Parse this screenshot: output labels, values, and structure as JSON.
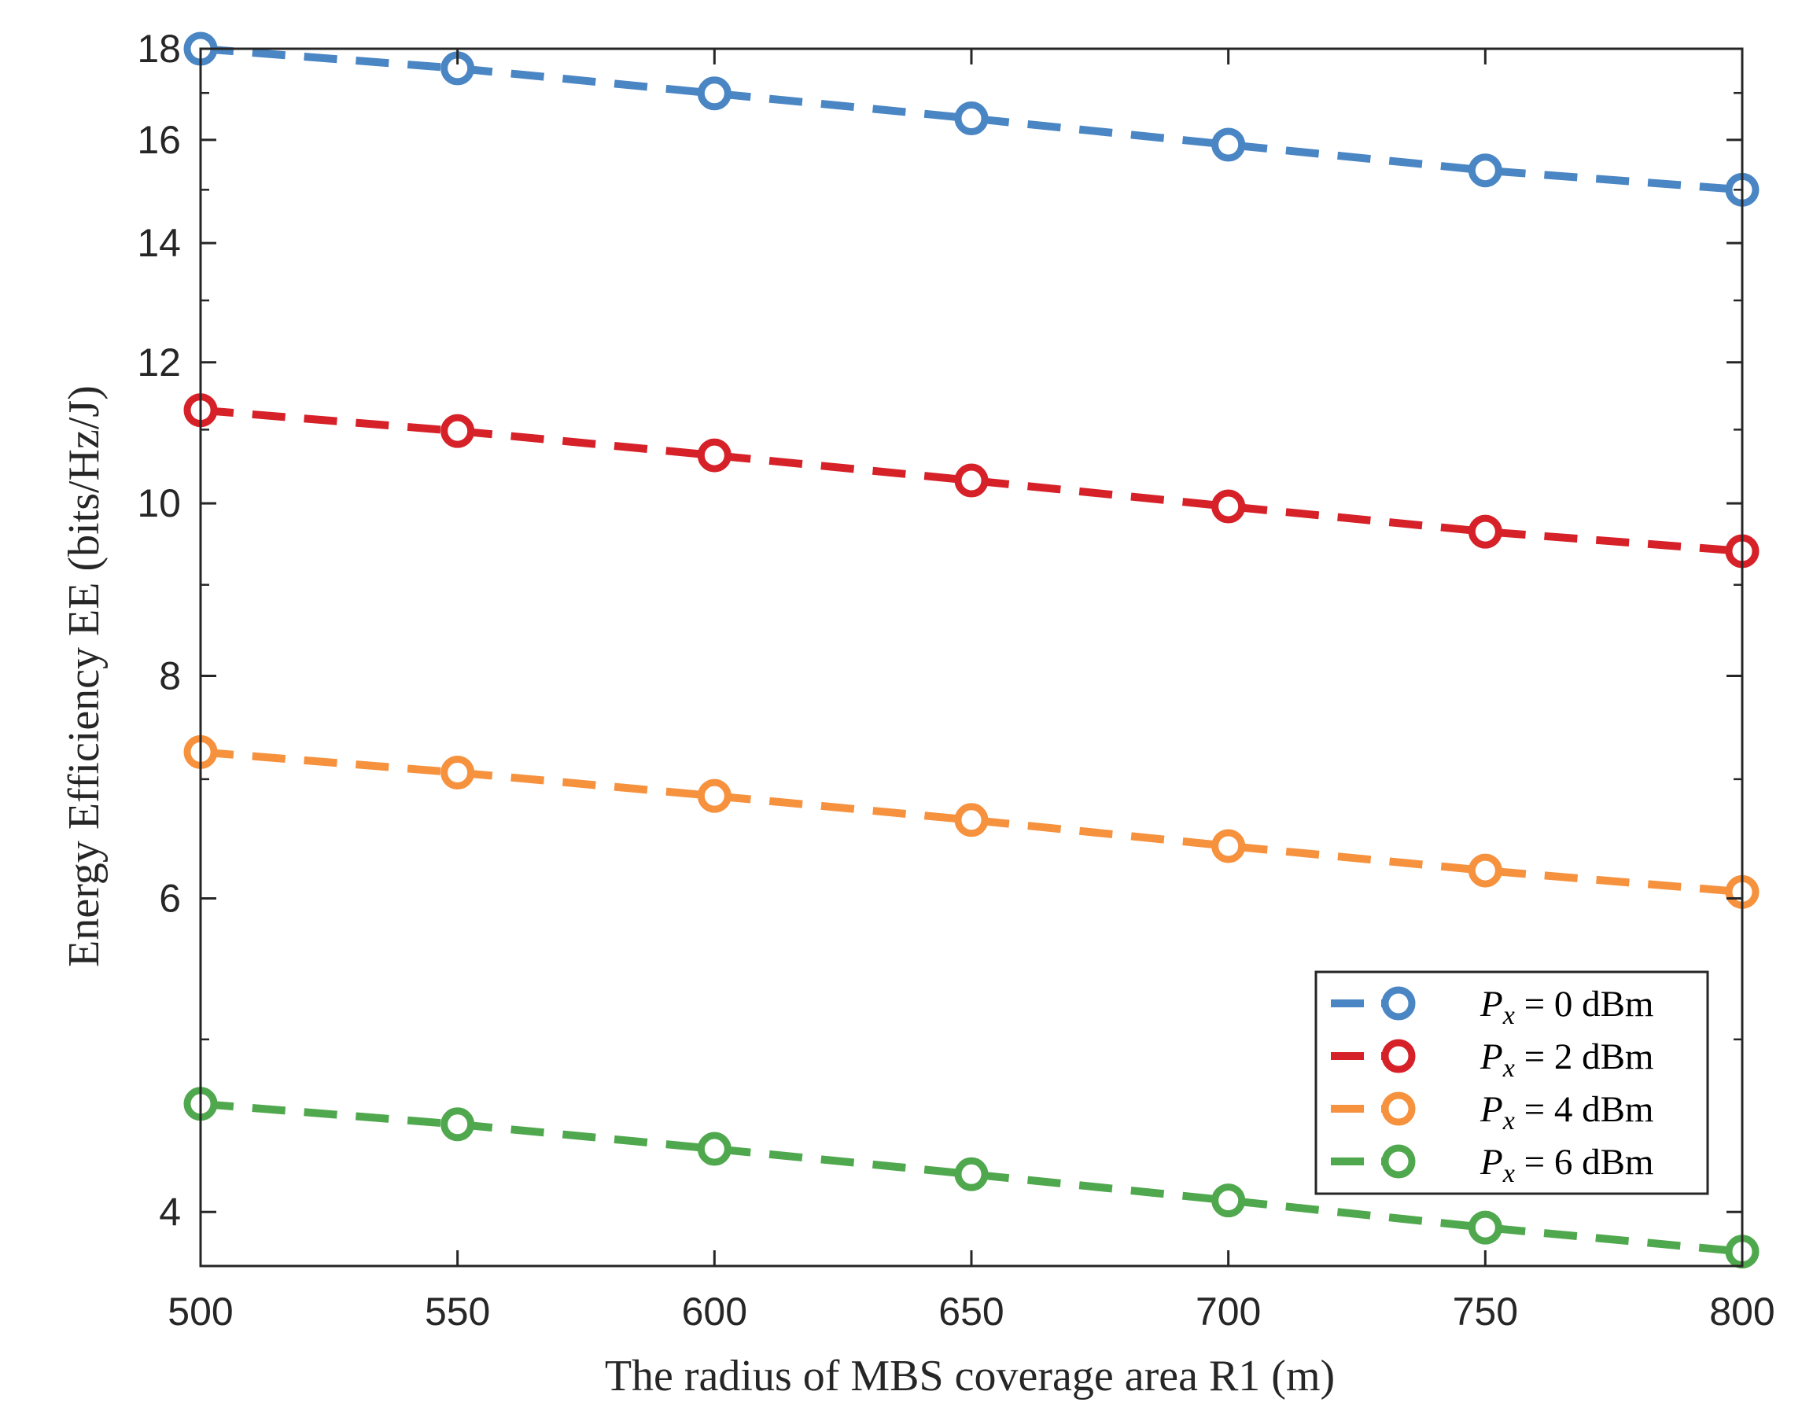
{
  "chart_data": {
    "type": "line",
    "title": "",
    "xlabel": "The radius of MBS coverage area R1 (m)",
    "ylabel": "Energy Efficiency EE (bits/Hz/J)",
    "xlim": [
      500,
      800
    ],
    "ylim": [
      3.73,
      18
    ],
    "yscale": "log",
    "grid": false,
    "legend_position": "bottom-right",
    "x": [
      500,
      550,
      600,
      650,
      700,
      750,
      800
    ],
    "xticks": [
      "500",
      "550",
      "600",
      "650",
      "700",
      "750",
      "800"
    ],
    "yticks": [
      "4",
      "6",
      "8",
      "10",
      "12",
      "14",
      "16",
      "18"
    ],
    "series": [
      {
        "name": "P_x = 0 dBm",
        "legend_var": "P",
        "legend_sub": "x",
        "legend_rest": " = 0 dBm",
        "color": "#4a86c4",
        "values": [
          18.0,
          17.55,
          16.99,
          16.45,
          15.9,
          15.38,
          15.0
        ]
      },
      {
        "name": "P_x = 2 dBm",
        "legend_var": "P",
        "legend_sub": "x",
        "legend_rest": " = 2 dBm",
        "color": "#d62128",
        "values": [
          11.28,
          10.98,
          10.64,
          10.3,
          9.96,
          9.64,
          9.4
        ]
      },
      {
        "name": "P_x = 4 dBm",
        "legend_var": "P",
        "legend_sub": "x",
        "legend_rest": " = 4 dBm",
        "color": "#f6913e",
        "values": [
          7.25,
          7.06,
          6.85,
          6.64,
          6.42,
          6.22,
          6.05
        ]
      },
      {
        "name": "P_x = 6 dBm",
        "legend_var": "P",
        "legend_sub": "x",
        "legend_rest": " = 6 dBm",
        "color": "#50a84e",
        "values": [
          4.6,
          4.48,
          4.34,
          4.2,
          4.06,
          3.92,
          3.8
        ]
      }
    ]
  }
}
